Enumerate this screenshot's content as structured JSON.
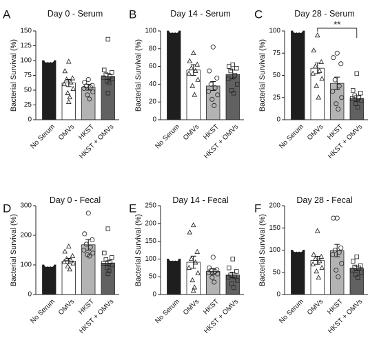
{
  "chart_data": [
    {
      "type": "bar",
      "panel": "A",
      "title": "Day 0 - Serum",
      "ylabel": "Bacterial Survival (%)",
      "ylim": [
        0,
        150
      ],
      "yticks": [
        0,
        25,
        50,
        75,
        100,
        125,
        150
      ],
      "categories": [
        "No Serum",
        "OMVs",
        "HKST",
        "HKST + OMVs"
      ],
      "colors": [
        "#1e1e1e",
        "#ffffff",
        "#b3b3b3",
        "#616161"
      ],
      "markers": [
        "circle",
        "triangle",
        "circle",
        "square"
      ],
      "values": [
        100,
        62,
        55,
        73
      ],
      "errors": [
        0,
        6,
        5,
        5
      ],
      "points": [
        [
          100,
          100,
          100
        ],
        [
          98,
          82,
          70,
          68,
          63,
          60,
          52,
          45,
          38,
          30
        ],
        [
          68,
          63,
          58,
          57,
          55,
          53,
          47,
          42,
          35
        ],
        [
          136,
          84,
          80,
          76,
          73,
          71,
          69,
          65,
          62,
          45
        ]
      ],
      "annotations": []
    },
    {
      "type": "bar",
      "panel": "B",
      "title": "Day 14 - Serum",
      "ylabel": "Bacterial Survival (%)",
      "ylim": [
        0,
        100
      ],
      "yticks": [
        0,
        20,
        40,
        60,
        80,
        100
      ],
      "categories": [
        "No Serum",
        "OMVs",
        "HKST",
        "HKST + OMVs"
      ],
      "colors": [
        "#1e1e1e",
        "#ffffff",
        "#b3b3b3",
        "#616161"
      ],
      "markers": [
        "circle",
        "triangle",
        "circle",
        "square"
      ],
      "values": [
        100,
        56,
        38,
        51
      ],
      "errors": [
        0,
        6,
        5,
        5
      ],
      "points": [
        [
          100,
          100,
          100
        ],
        [
          75,
          66,
          62,
          58,
          55,
          52,
          45,
          38,
          28
        ],
        [
          82,
          55,
          47,
          40,
          36,
          32,
          28,
          23,
          16
        ],
        [
          62,
          60,
          58,
          55,
          50,
          46,
          40,
          33,
          30
        ]
      ],
      "annotations": []
    },
    {
      "type": "bar",
      "panel": "C",
      "title": "Day 28 - Serum",
      "ylabel": "Bacterial Survival (%)",
      "ylim": [
        0,
        100
      ],
      "yticks": [
        0,
        25,
        50,
        75,
        100
      ],
      "categories": [
        "No Serum",
        "OMVs",
        "HKST",
        "HKST + OMVs"
      ],
      "colors": [
        "#1e1e1e",
        "#ffffff",
        "#b3b3b3",
        "#616161"
      ],
      "markers": [
        "circle",
        "triangle",
        "circle",
        "square"
      ],
      "values": [
        100,
        58,
        41,
        24
      ],
      "errors": [
        0,
        6,
        7,
        3
      ],
      "points": [
        [
          100,
          100,
          100
        ],
        [
          95,
          78,
          65,
          60,
          55,
          52,
          46,
          38,
          25
        ],
        [
          75,
          70,
          63,
          45,
          38,
          32,
          25,
          18,
          12
        ],
        [
          52,
          33,
          30,
          27,
          25,
          24,
          22,
          18,
          14
        ]
      ],
      "annotations": [
        {
          "text": "**",
          "from": 1,
          "to": 3
        }
      ]
    },
    {
      "type": "bar",
      "panel": "D",
      "title": "Day 0 - Fecal",
      "ylabel": "Bacterial Survival (%)",
      "ylim": [
        0,
        300
      ],
      "yticks": [
        0,
        100,
        200,
        300
      ],
      "categories": [
        "No Serum",
        "OMVs",
        "HKST",
        "HKST + OMVs"
      ],
      "colors": [
        "#1e1e1e",
        "#ffffff",
        "#b3b3b3",
        "#616161"
      ],
      "markers": [
        "circle",
        "triangle",
        "circle",
        "square"
      ],
      "values": [
        100,
        113,
        168,
        106
      ],
      "errors": [
        0,
        9,
        18,
        8
      ],
      "points": [
        [
          100,
          100,
          100
        ],
        [
          162,
          145,
          130,
          120,
          115,
          110,
          105,
          95,
          85
        ],
        [
          275,
          205,
          185,
          170,
          160,
          150,
          140,
          135,
          130
        ],
        [
          222,
          140,
          125,
          118,
          110,
          105,
          100,
          90,
          80,
          70
        ]
      ],
      "annotations": []
    },
    {
      "type": "bar",
      "panel": "E",
      "title": "Day 14 - Fecal",
      "ylabel": "Bacterial Survival (%)",
      "ylim": [
        0,
        250
      ],
      "yticks": [
        0,
        50,
        100,
        150,
        200,
        250
      ],
      "categories": [
        "No Serum",
        "OMVs",
        "HKST",
        "HKST + OMVs"
      ],
      "colors": [
        "#1e1e1e",
        "#ffffff",
        "#b3b3b3",
        "#616161"
      ],
      "markers": [
        "circle",
        "triangle",
        "circle",
        "square"
      ],
      "values": [
        100,
        91,
        65,
        55
      ],
      "errors": [
        0,
        17,
        8,
        8
      ],
      "points": [
        [
          100,
          100,
          100
        ],
        [
          195,
          175,
          120,
          100,
          90,
          75,
          60,
          40,
          20,
          10
        ],
        [
          105,
          75,
          70,
          68,
          65,
          62,
          58,
          48,
          35
        ],
        [
          100,
          75,
          65,
          55,
          50,
          48,
          40,
          30,
          20
        ]
      ],
      "annotations": []
    },
    {
      "type": "bar",
      "panel": "F",
      "title": "Day 28 - Fecal",
      "ylabel": "Bacterial Survival (%)",
      "ylim": [
        0,
        200
      ],
      "yticks": [
        0,
        50,
        100,
        150,
        200
      ],
      "categories": [
        "No Serum",
        "OMVs",
        "HKST",
        "HKST + OMVs"
      ],
      "colors": [
        "#1e1e1e",
        "#ffffff",
        "#b3b3b3",
        "#616161"
      ],
      "markers": [
        "circle",
        "triangle",
        "circle",
        "square"
      ],
      "values": [
        100,
        77,
        99,
        59
      ],
      "errors": [
        0,
        9,
        14,
        5
      ],
      "points": [
        [
          100,
          100,
          100
        ],
        [
          143,
          90,
          85,
          80,
          75,
          68,
          60,
          52,
          38
        ],
        [
          172,
          172,
          105,
          100,
          95,
          90,
          70,
          55,
          40
        ],
        [
          85,
          75,
          65,
          62,
          60,
          55,
          50,
          45,
          38
        ]
      ],
      "annotations": []
    }
  ]
}
